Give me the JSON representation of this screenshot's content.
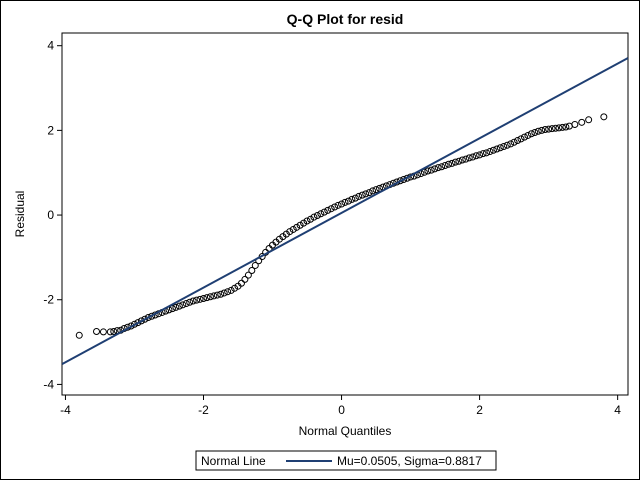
{
  "chart_data": {
    "type": "scatter",
    "title": "Q-Q Plot for resid",
    "xlabel": "Normal Quantiles",
    "ylabel": "Residual",
    "xlim": [
      -4.05,
      4.15
    ],
    "ylim": [
      -4.25,
      4.3
    ],
    "xticks": [
      -4,
      -2,
      0,
      2,
      4
    ],
    "yticks": [
      -4,
      -2,
      0,
      2,
      4
    ],
    "grid": false,
    "marker_color": "#000000",
    "line_color": "#1f3f73",
    "reference_line": {
      "name": "Normal Line",
      "legend_text": "Mu=0.0505, Sigma=0.8817",
      "mu": 0.0505,
      "sigma": 0.8817
    },
    "legend_position": "bottom-center",
    "series": [
      {
        "marker": "open-circle",
        "points": [
          [
            -3.8,
            -2.84
          ],
          [
            -3.55,
            -2.75
          ],
          [
            -3.45,
            -2.76
          ],
          [
            -3.35,
            -2.76
          ],
          [
            -3.3,
            -2.75
          ],
          [
            -3.25,
            -2.73
          ],
          [
            -3.2,
            -2.72
          ],
          [
            -3.15,
            -2.68
          ],
          [
            -3.1,
            -2.65
          ],
          [
            -3.05,
            -2.62
          ],
          [
            -3.0,
            -2.58
          ],
          [
            -2.95,
            -2.54
          ],
          [
            -2.9,
            -2.5
          ],
          [
            -2.85,
            -2.46
          ],
          [
            -2.8,
            -2.42
          ],
          [
            -2.75,
            -2.39
          ],
          [
            -2.7,
            -2.36
          ],
          [
            -2.65,
            -2.33
          ],
          [
            -2.6,
            -2.3
          ],
          [
            -2.55,
            -2.27
          ],
          [
            -2.5,
            -2.24
          ],
          [
            -2.45,
            -2.21
          ],
          [
            -2.4,
            -2.18
          ],
          [
            -2.35,
            -2.15
          ],
          [
            -2.3,
            -2.12
          ],
          [
            -2.25,
            -2.09
          ],
          [
            -2.2,
            -2.06
          ],
          [
            -2.15,
            -2.03
          ],
          [
            -2.1,
            -2.01
          ],
          [
            -2.05,
            -1.99
          ],
          [
            -2.0,
            -1.97
          ],
          [
            -1.95,
            -1.95
          ],
          [
            -1.9,
            -1.93
          ],
          [
            -1.85,
            -1.91
          ],
          [
            -1.8,
            -1.89
          ],
          [
            -1.75,
            -1.87
          ],
          [
            -1.7,
            -1.84
          ],
          [
            -1.65,
            -1.81
          ],
          [
            -1.6,
            -1.78
          ],
          [
            -1.55,
            -1.73
          ],
          [
            -1.5,
            -1.68
          ],
          [
            -1.45,
            -1.61
          ],
          [
            -1.4,
            -1.52
          ],
          [
            -1.35,
            -1.42
          ],
          [
            -1.3,
            -1.31
          ],
          [
            -1.25,
            -1.19
          ],
          [
            -1.2,
            -1.08
          ],
          [
            -1.15,
            -0.98
          ],
          [
            -1.1,
            -0.88
          ],
          [
            -1.05,
            -0.79
          ],
          [
            -1.0,
            -0.71
          ],
          [
            -0.95,
            -0.64
          ],
          [
            -0.9,
            -0.57
          ],
          [
            -0.85,
            -0.51
          ],
          [
            -0.8,
            -0.45
          ],
          [
            -0.75,
            -0.39
          ],
          [
            -0.7,
            -0.34
          ],
          [
            -0.65,
            -0.29
          ],
          [
            -0.6,
            -0.24
          ],
          [
            -0.55,
            -0.19
          ],
          [
            -0.5,
            -0.14
          ],
          [
            -0.45,
            -0.1
          ],
          [
            -0.4,
            -0.05
          ],
          [
            -0.35,
            -0.01
          ],
          [
            -0.3,
            0.03
          ],
          [
            -0.25,
            0.07
          ],
          [
            -0.2,
            0.11
          ],
          [
            -0.15,
            0.15
          ],
          [
            -0.1,
            0.19
          ],
          [
            -0.05,
            0.23
          ],
          [
            0.0,
            0.26
          ],
          [
            0.05,
            0.3
          ],
          [
            0.1,
            0.33
          ],
          [
            0.15,
            0.37
          ],
          [
            0.2,
            0.4
          ],
          [
            0.25,
            0.44
          ],
          [
            0.3,
            0.47
          ],
          [
            0.35,
            0.5
          ],
          [
            0.4,
            0.53
          ],
          [
            0.45,
            0.57
          ],
          [
            0.5,
            0.6
          ],
          [
            0.55,
            0.63
          ],
          [
            0.6,
            0.66
          ],
          [
            0.65,
            0.69
          ],
          [
            0.7,
            0.72
          ],
          [
            0.75,
            0.75
          ],
          [
            0.8,
            0.78
          ],
          [
            0.85,
            0.81
          ],
          [
            0.9,
            0.84
          ],
          [
            0.95,
            0.87
          ],
          [
            1.0,
            0.9
          ],
          [
            1.05,
            0.92
          ],
          [
            1.1,
            0.95
          ],
          [
            1.15,
            0.98
          ],
          [
            1.2,
            1.01
          ],
          [
            1.25,
            1.04
          ],
          [
            1.3,
            1.06
          ],
          [
            1.35,
            1.09
          ],
          [
            1.4,
            1.12
          ],
          [
            1.45,
            1.14
          ],
          [
            1.5,
            1.17
          ],
          [
            1.55,
            1.2
          ],
          [
            1.6,
            1.22
          ],
          [
            1.65,
            1.25
          ],
          [
            1.7,
            1.27
          ],
          [
            1.75,
            1.3
          ],
          [
            1.8,
            1.32
          ],
          [
            1.85,
            1.35
          ],
          [
            1.9,
            1.37
          ],
          [
            1.95,
            1.4
          ],
          [
            2.0,
            1.42
          ],
          [
            2.05,
            1.45
          ],
          [
            2.1,
            1.47
          ],
          [
            2.15,
            1.5
          ],
          [
            2.2,
            1.53
          ],
          [
            2.25,
            1.56
          ],
          [
            2.3,
            1.59
          ],
          [
            2.35,
            1.62
          ],
          [
            2.4,
            1.65
          ],
          [
            2.45,
            1.68
          ],
          [
            2.5,
            1.72
          ],
          [
            2.55,
            1.76
          ],
          [
            2.6,
            1.8
          ],
          [
            2.65,
            1.84
          ],
          [
            2.7,
            1.88
          ],
          [
            2.75,
            1.92
          ],
          [
            2.8,
            1.95
          ],
          [
            2.85,
            1.98
          ],
          [
            2.9,
            2.0
          ],
          [
            2.95,
            2.02
          ],
          [
            3.0,
            2.03
          ],
          [
            3.05,
            2.04
          ],
          [
            3.1,
            2.05
          ],
          [
            3.15,
            2.06
          ],
          [
            3.2,
            2.07
          ],
          [
            3.25,
            2.08
          ],
          [
            3.3,
            2.1
          ],
          [
            3.38,
            2.14
          ],
          [
            3.48,
            2.19
          ],
          [
            3.58,
            2.25
          ],
          [
            3.8,
            2.32
          ]
        ]
      }
    ]
  }
}
